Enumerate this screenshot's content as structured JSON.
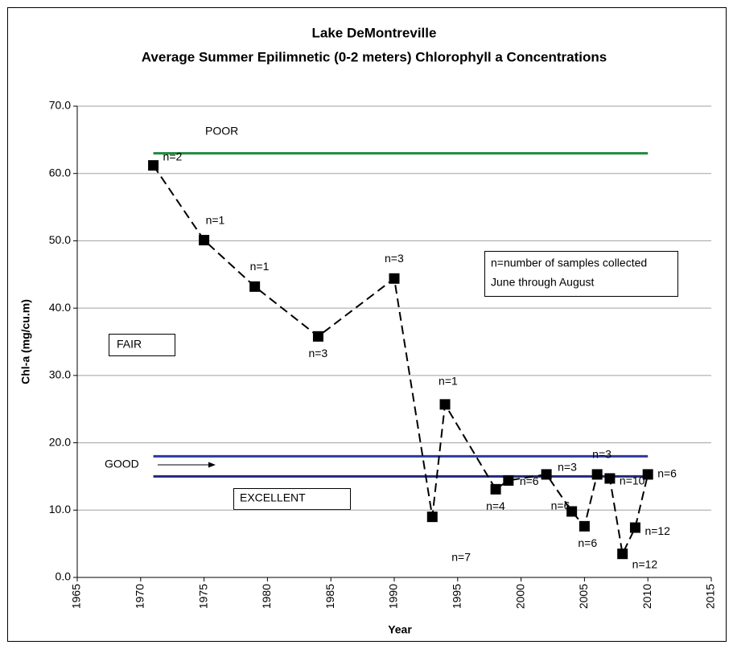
{
  "chart_data": {
    "type": "line",
    "title": [
      "Lake DeMontreville",
      "Average Summer Epilimnetic (0-2 meters) Chlorophyll a Concentrations"
    ],
    "x_label": "Year",
    "y_label": "Chl-a (mg/cu.m)",
    "x": [
      1971,
      1975,
      1979,
      1984,
      1990,
      1993,
      1994,
      1998,
      1999,
      2002,
      2004,
      2005,
      2006,
      2007,
      2008,
      2009,
      2010
    ],
    "series": [
      {
        "name": "Chl-a",
        "color": "#000000",
        "values": [
          61.2,
          50.1,
          43.2,
          35.8,
          44.4,
          9.0,
          25.7,
          13.1,
          14.4,
          15.3,
          9.8,
          7.6,
          15.3,
          14.7,
          3.5,
          7.4,
          15.3
        ],
        "point_labels": [
          "n=2",
          "n=1",
          "n=1",
          "n=3",
          "n=3",
          "n=7",
          "n=1",
          "n=4",
          "n=6",
          "n=3",
          "n=6",
          "n=6",
          "n=3",
          "n=10",
          "n=12",
          "n=12",
          "n=6"
        ]
      }
    ],
    "reference_lines": [
      {
        "value": 63,
        "x": [
          1971,
          2010
        ],
        "color": "#1f8a3c"
      },
      {
        "value": 18,
        "x": [
          1971,
          2010
        ],
        "color": "#2e3a9e"
      },
      {
        "value": 15,
        "x": [
          1971,
          2010
        ],
        "color": "#1f2a7a"
      }
    ],
    "annotations": {
      "poor": "POOR",
      "fair": "FAIR",
      "good": "GOOD",
      "excellent": "EXCELLENT",
      "note": [
        "n=number of samples collected",
        "June through August"
      ]
    },
    "xlim": [
      1965,
      2015
    ],
    "xticks": [
      1965,
      1970,
      1975,
      1980,
      1985,
      1990,
      1995,
      2000,
      2005,
      2010,
      2015
    ],
    "ylim": [
      0,
      70
    ],
    "yticks": [
      {
        "value": 0,
        "label": "0.0"
      },
      {
        "value": 10,
        "label": "10.0"
      },
      {
        "value": 20,
        "label": "20.0"
      },
      {
        "value": 30,
        "label": "30.0"
      },
      {
        "value": 40,
        "label": "40.0"
      },
      {
        "value": 50,
        "label": "50.0"
      },
      {
        "value": 60,
        "label": "60.0"
      },
      {
        "value": 70,
        "label": "70.0"
      }
    ],
    "grid": true
  }
}
